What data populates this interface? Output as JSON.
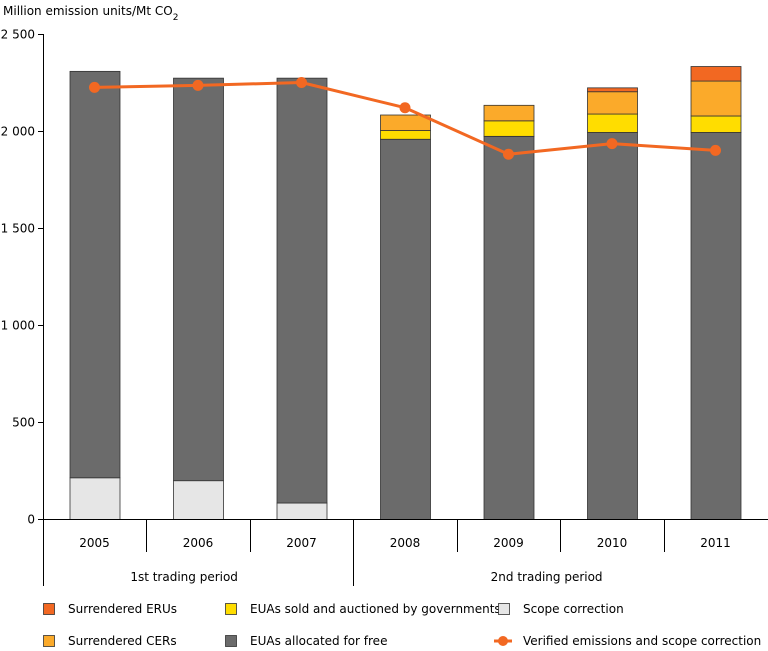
{
  "chart_data": {
    "type": "bar",
    "ylabel": "Million emission units/Mt CO2",
    "ylabel_main": "Million emission units/Mt CO",
    "ylabel_sub": "2",
    "ylim": [
      0,
      2500
    ],
    "yticks": [
      {
        "value": 0,
        "label": "0"
      },
      {
        "value": 500,
        "label": "500"
      },
      {
        "value": 1000,
        "label": "1 000"
      },
      {
        "value": 1500,
        "label": "1 500"
      },
      {
        "value": 2000,
        "label": "2 000"
      },
      {
        "value": 2500,
        "label": "2 500"
      }
    ],
    "grid": false,
    "categories": [
      "2005",
      "2006",
      "2007",
      "2008",
      "2009",
      "2010",
      "2011"
    ],
    "periods": [
      {
        "label": "1st trading period",
        "categories": [
          "2005",
          "2006",
          "2007"
        ]
      },
      {
        "label": "2nd trading period",
        "categories": [
          "2008",
          "2009",
          "2010",
          "2011"
        ]
      }
    ],
    "series": [
      {
        "name": "Scope correction",
        "type": "bar",
        "color": "#e6e6e6",
        "values": [
          215,
          200,
          85,
          0,
          0,
          0,
          0
        ]
      },
      {
        "name": "EUAs allocated for free",
        "type": "bar",
        "color": "#6b6b6b",
        "values": [
          2095,
          2075,
          2190,
          1960,
          1975,
          1995,
          1995
        ]
      },
      {
        "name": "EUAs sold and auctioned by governments",
        "type": "bar",
        "color": "#ffdd00",
        "values": [
          0,
          0,
          0,
          45,
          80,
          95,
          85
        ]
      },
      {
        "name": "Surrendered CERs",
        "type": "bar",
        "color": "#fbaa2a",
        "values": [
          0,
          0,
          0,
          80,
          80,
          115,
          180
        ]
      },
      {
        "name": "Surrendered ERUs",
        "type": "bar",
        "color": "#f26822",
        "values": [
          0,
          0,
          0,
          0,
          0,
          20,
          75
        ]
      },
      {
        "name": "Verified emissions and scope correction",
        "type": "line",
        "color": "#f26822",
        "values": [
          2225,
          2235,
          2250,
          2120,
          1880,
          1935,
          1900
        ]
      }
    ],
    "legend": {
      "placement": "bottom",
      "order": [
        "Surrendered ERUs",
        "EUAs sold and auctioned by governments",
        "Scope correction",
        "Surrendered CERs",
        "EUAs allocated for free",
        "Verified emissions and scope correction"
      ]
    }
  }
}
